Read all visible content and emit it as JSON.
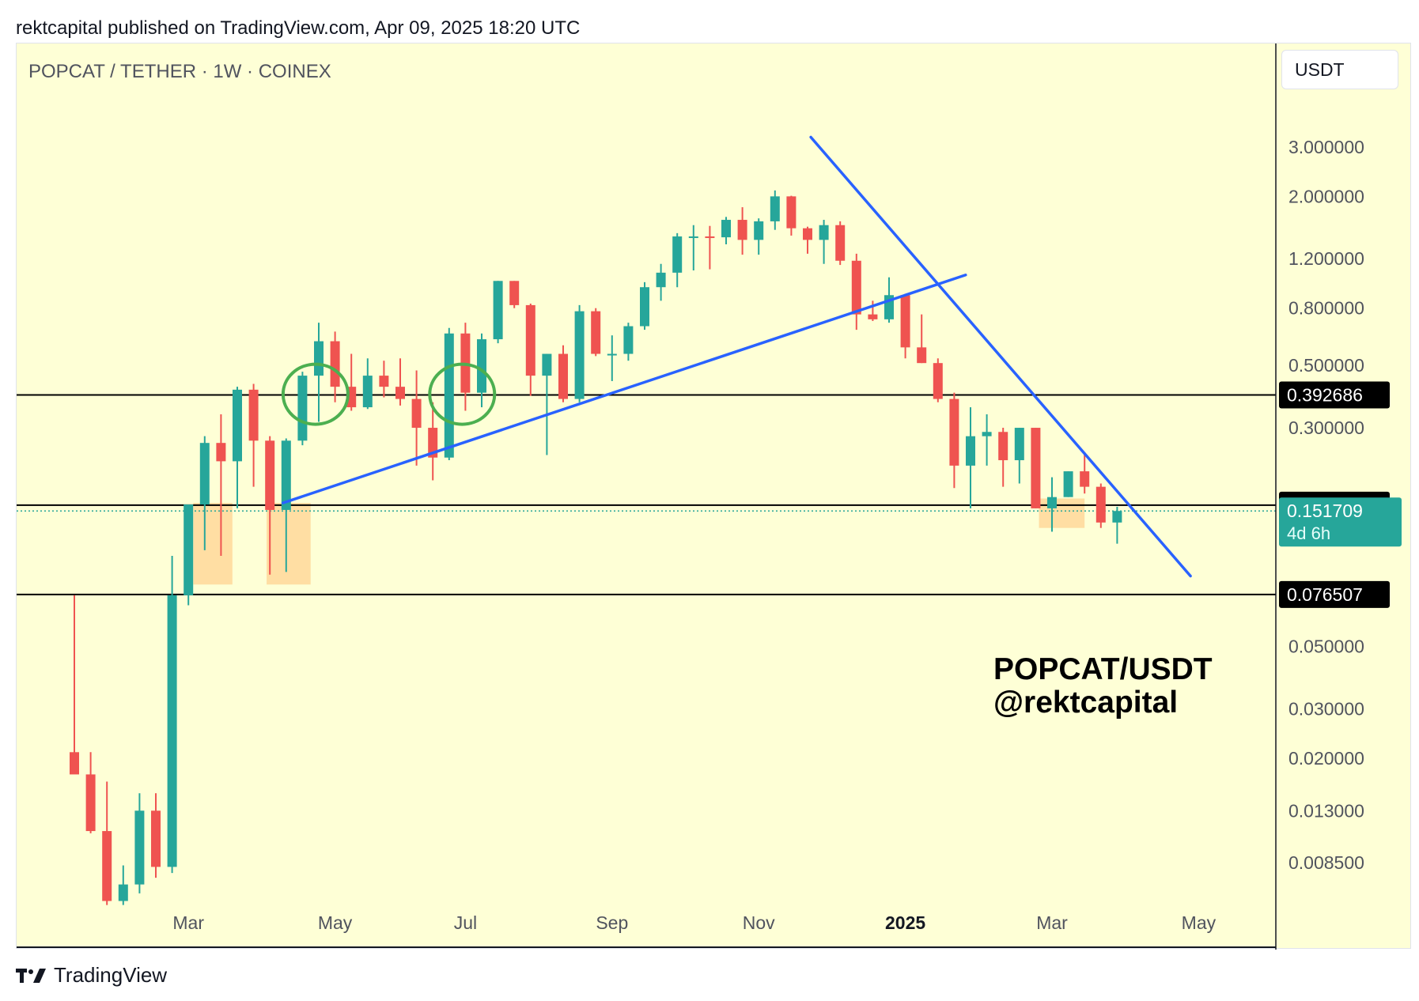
{
  "header": {
    "published_text": "rektcapital published on TradingView.com, Apr 09, 2025 18:20 UTC"
  },
  "symbol_label": "POPCAT / TETHER · 1W · COINEX",
  "currency": "USDT",
  "watermark": {
    "line1": "POPCAT/USDT",
    "line2": "@rektcapital"
  },
  "footer": {
    "brand": "TradingView"
  },
  "colors": {
    "background": "#feffd6",
    "up": "#26a69a",
    "down": "#ef5350",
    "trendline": "#2962ff",
    "circle": "#4caf50",
    "zone": "#ffd89a"
  },
  "chart_data": {
    "type": "candlestick",
    "scale": "log",
    "interval": "1W",
    "ylim": [
      0.0055,
      5.0
    ],
    "y_ticks": [
      {
        "value": 3.0,
        "label": "3.000000"
      },
      {
        "value": 2.0,
        "label": "2.000000"
      },
      {
        "value": 1.2,
        "label": "1.200000"
      },
      {
        "value": 0.8,
        "label": "0.800000"
      },
      {
        "value": 0.5,
        "label": "0.500000"
      },
      {
        "value": 0.3,
        "label": "0.300000"
      },
      {
        "value": 0.05,
        "label": "0.050000"
      },
      {
        "value": 0.03,
        "label": "0.030000"
      },
      {
        "value": 0.02,
        "label": "0.020000"
      },
      {
        "value": 0.013,
        "label": "0.013000"
      },
      {
        "value": 0.0085,
        "label": "0.008500"
      }
    ],
    "x_ticks": [
      {
        "label": "Mar",
        "bar": 7,
        "bold": false
      },
      {
        "label": "May",
        "bar": 16,
        "bold": false
      },
      {
        "label": "Jul",
        "bar": 24,
        "bold": false
      },
      {
        "label": "Sep",
        "bar": 33,
        "bold": false
      },
      {
        "label": "Nov",
        "bar": 42,
        "bold": false
      },
      {
        "label": "2025",
        "bar": 51,
        "bold": true
      },
      {
        "label": "Mar",
        "bar": 60,
        "bold": false
      },
      {
        "label": "May",
        "bar": 69,
        "bold": false
      }
    ],
    "candles": [
      {
        "o": 0.021,
        "h": 0.076,
        "l": 0.018,
        "c": 0.0175
      },
      {
        "o": 0.0175,
        "h": 0.021,
        "l": 0.0108,
        "c": 0.011
      },
      {
        "o": 0.011,
        "h": 0.0165,
        "l": 0.006,
        "c": 0.0062
      },
      {
        "o": 0.0062,
        "h": 0.0083,
        "l": 0.006,
        "c": 0.0071
      },
      {
        "o": 0.0071,
        "h": 0.015,
        "l": 0.0066,
        "c": 0.013
      },
      {
        "o": 0.013,
        "h": 0.015,
        "l": 0.0075,
        "c": 0.0082
      },
      {
        "o": 0.0082,
        "h": 0.105,
        "l": 0.0078,
        "c": 0.076
      },
      {
        "o": 0.076,
        "h": 0.16,
        "l": 0.07,
        "c": 0.16
      },
      {
        "o": 0.16,
        "h": 0.28,
        "l": 0.11,
        "c": 0.265
      },
      {
        "o": 0.265,
        "h": 0.335,
        "l": 0.105,
        "c": 0.228
      },
      {
        "o": 0.228,
        "h": 0.42,
        "l": 0.155,
        "c": 0.41
      },
      {
        "o": 0.41,
        "h": 0.43,
        "l": 0.185,
        "c": 0.27
      },
      {
        "o": 0.27,
        "h": 0.28,
        "l": 0.09,
        "c": 0.153
      },
      {
        "o": 0.153,
        "h": 0.275,
        "l": 0.092,
        "c": 0.27
      },
      {
        "o": 0.27,
        "h": 0.475,
        "l": 0.26,
        "c": 0.46
      },
      {
        "o": 0.46,
        "h": 0.71,
        "l": 0.315,
        "c": 0.61
      },
      {
        "o": 0.61,
        "h": 0.66,
        "l": 0.37,
        "c": 0.42
      },
      {
        "o": 0.42,
        "h": 0.55,
        "l": 0.345,
        "c": 0.355
      },
      {
        "o": 0.355,
        "h": 0.53,
        "l": 0.35,
        "c": 0.46
      },
      {
        "o": 0.46,
        "h": 0.52,
        "l": 0.385,
        "c": 0.42
      },
      {
        "o": 0.42,
        "h": 0.53,
        "l": 0.36,
        "c": 0.38
      },
      {
        "o": 0.38,
        "h": 0.48,
        "l": 0.22,
        "c": 0.3
      },
      {
        "o": 0.3,
        "h": 0.37,
        "l": 0.195,
        "c": 0.235
      },
      {
        "o": 0.235,
        "h": 0.68,
        "l": 0.23,
        "c": 0.65
      },
      {
        "o": 0.65,
        "h": 0.71,
        "l": 0.345,
        "c": 0.4
      },
      {
        "o": 0.4,
        "h": 0.65,
        "l": 0.355,
        "c": 0.62
      },
      {
        "o": 0.62,
        "h": 1.0,
        "l": 0.6,
        "c": 1.0
      },
      {
        "o": 1.0,
        "h": 1.0,
        "l": 0.8,
        "c": 0.82
      },
      {
        "o": 0.82,
        "h": 0.83,
        "l": 0.39,
        "c": 0.46
      },
      {
        "o": 0.46,
        "h": 0.55,
        "l": 0.24,
        "c": 0.55
      },
      {
        "o": 0.55,
        "h": 0.59,
        "l": 0.37,
        "c": 0.38
      },
      {
        "o": 0.38,
        "h": 0.82,
        "l": 0.37,
        "c": 0.78
      },
      {
        "o": 0.78,
        "h": 0.8,
        "l": 0.54,
        "c": 0.55
      },
      {
        "o": 0.55,
        "h": 0.64,
        "l": 0.44,
        "c": 0.55
      },
      {
        "o": 0.55,
        "h": 0.71,
        "l": 0.52,
        "c": 0.69
      },
      {
        "o": 0.69,
        "h": 0.99,
        "l": 0.67,
        "c": 0.95
      },
      {
        "o": 0.95,
        "h": 1.15,
        "l": 0.85,
        "c": 1.07
      },
      {
        "o": 1.07,
        "h": 1.48,
        "l": 0.95,
        "c": 1.44
      },
      {
        "o": 1.44,
        "h": 1.58,
        "l": 1.09,
        "c": 1.44
      },
      {
        "o": 1.44,
        "h": 1.57,
        "l": 1.1,
        "c": 1.43
      },
      {
        "o": 1.43,
        "h": 1.69,
        "l": 1.35,
        "c": 1.65
      },
      {
        "o": 1.65,
        "h": 1.83,
        "l": 1.24,
        "c": 1.4
      },
      {
        "o": 1.4,
        "h": 1.67,
        "l": 1.24,
        "c": 1.63
      },
      {
        "o": 1.63,
        "h": 2.1,
        "l": 1.52,
        "c": 2.0
      },
      {
        "o": 2.0,
        "h": 2.01,
        "l": 1.45,
        "c": 1.54
      },
      {
        "o": 1.54,
        "h": 1.56,
        "l": 1.25,
        "c": 1.4
      },
      {
        "o": 1.4,
        "h": 1.65,
        "l": 1.15,
        "c": 1.58
      },
      {
        "o": 1.58,
        "h": 1.63,
        "l": 1.14,
        "c": 1.18
      },
      {
        "o": 1.18,
        "h": 1.25,
        "l": 0.67,
        "c": 0.76
      },
      {
        "o": 0.76,
        "h": 0.85,
        "l": 0.72,
        "c": 0.73
      },
      {
        "o": 0.73,
        "h": 1.03,
        "l": 0.71,
        "c": 0.89
      },
      {
        "o": 0.89,
        "h": 0.9,
        "l": 0.53,
        "c": 0.58
      },
      {
        "o": 0.58,
        "h": 0.76,
        "l": 0.51,
        "c": 0.51
      },
      {
        "o": 0.51,
        "h": 0.53,
        "l": 0.37,
        "c": 0.38
      },
      {
        "o": 0.38,
        "h": 0.4,
        "l": 0.183,
        "c": 0.22
      },
      {
        "o": 0.22,
        "h": 0.355,
        "l": 0.155,
        "c": 0.28
      },
      {
        "o": 0.28,
        "h": 0.335,
        "l": 0.22,
        "c": 0.29
      },
      {
        "o": 0.29,
        "h": 0.3,
        "l": 0.185,
        "c": 0.23
      },
      {
        "o": 0.23,
        "h": 0.3,
        "l": 0.19,
        "c": 0.3
      },
      {
        "o": 0.3,
        "h": 0.3,
        "l": 0.155,
        "c": 0.155
      },
      {
        "o": 0.155,
        "h": 0.2,
        "l": 0.128,
        "c": 0.17
      },
      {
        "o": 0.17,
        "h": 0.21,
        "l": 0.17,
        "c": 0.21
      },
      {
        "o": 0.21,
        "h": 0.245,
        "l": 0.175,
        "c": 0.185
      },
      {
        "o": 0.185,
        "h": 0.19,
        "l": 0.132,
        "c": 0.138
      },
      {
        "o": 0.138,
        "h": 0.157,
        "l": 0.116,
        "c": 0.1517
      }
    ],
    "horizontal_levels": [
      {
        "value": 0.392686,
        "label": "0.392686"
      },
      {
        "value": 0.159168,
        "label": "0.159168"
      },
      {
        "value": 0.076507,
        "label": "0.076507"
      }
    ],
    "current_price": {
      "value": 0.151709,
      "label": "0.151709",
      "countdown": "4d 6h"
    },
    "trendlines": [
      {
        "from": {
          "bar": 12.8,
          "price": 0.162
        },
        "to": {
          "bar": 54.7,
          "price": 1.05
        }
      },
      {
        "from": {
          "bar": 45.2,
          "price": 3.25
        },
        "to": {
          "bar": 68.5,
          "price": 0.089
        }
      }
    ],
    "circles": [
      {
        "bar": 14.8,
        "price": 0.395
      },
      {
        "bar": 23.8,
        "price": 0.395
      }
    ],
    "zones": [
      {
        "bar_from": 7.3,
        "bar_to": 9.7,
        "price_from": 0.083,
        "price_to": 0.162
      },
      {
        "bar_from": 11.8,
        "bar_to": 14.5,
        "price_from": 0.083,
        "price_to": 0.162
      },
      {
        "bar_from": 59.2,
        "bar_to": 62.0,
        "price_from": 0.132,
        "price_to": 0.168
      }
    ]
  }
}
